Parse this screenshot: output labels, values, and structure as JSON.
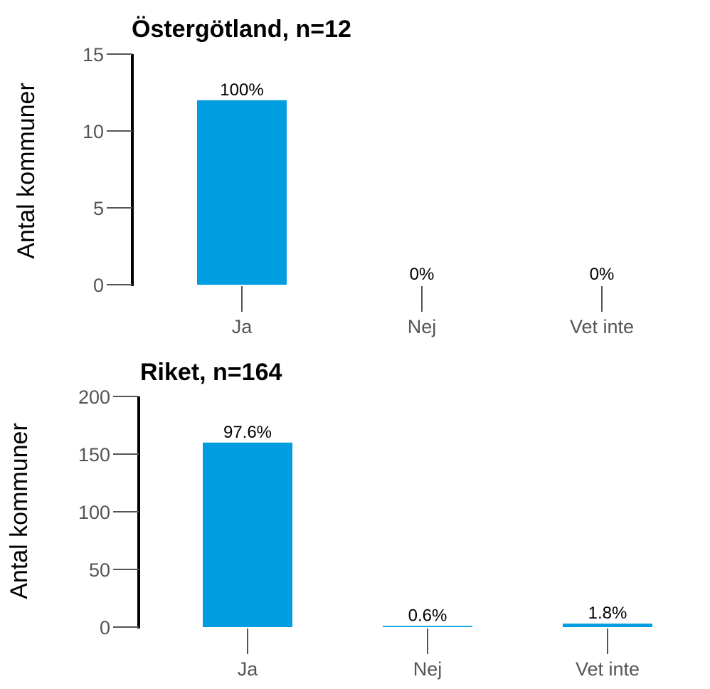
{
  "chart_data": [
    {
      "type": "bar",
      "title": "Östergötland, n=12",
      "ylabel": "Antal kommuner",
      "xlabel": "",
      "categories": [
        "Ja",
        "Nej",
        "Vet inte"
      ],
      "values": [
        12,
        0,
        0
      ],
      "data_labels": [
        "100%",
        "0%",
        "0%"
      ],
      "ylim": [
        0,
        15
      ],
      "yticks": [
        0,
        5,
        10,
        15
      ],
      "bar_color": "#009ee0",
      "grid": false,
      "legend": "none"
    },
    {
      "type": "bar",
      "title": "Riket, n=164",
      "ylabel": "Antal kommuner",
      "xlabel": "",
      "categories": [
        "Ja",
        "Nej",
        "Vet inte"
      ],
      "values": [
        160,
        1,
        3
      ],
      "data_labels": [
        "97.6%",
        "0.6%",
        "1.8%"
      ],
      "ylim": [
        0,
        200
      ],
      "yticks": [
        0,
        50,
        100,
        150,
        200
      ],
      "bar_color": "#009ee0",
      "grid": false,
      "legend": "none"
    }
  ]
}
